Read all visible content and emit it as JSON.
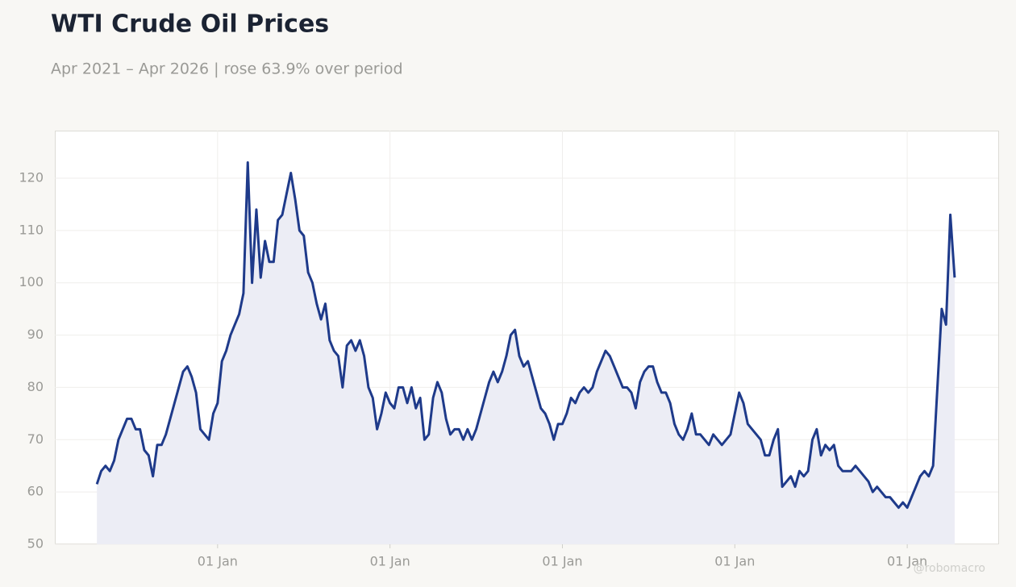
{
  "chart_data": {
    "type": "area-line",
    "title": "WTI Crude Oil Prices",
    "subtitle": "Apr 2021 – Apr 2026 | rose 63.9% over period",
    "watermark": "@robomacro",
    "color": "#1e3a8a",
    "fill_color": "#ecedf5",
    "grid": true,
    "xlim": [
      2021.056,
      2026.528
    ],
    "ylim": [
      50,
      129.1
    ],
    "xticks": [
      {
        "value": 2022,
        "label": "01 Jan"
      },
      {
        "value": 2023,
        "label": "01 Jan"
      },
      {
        "value": 2024,
        "label": "01 Jan"
      },
      {
        "value": 2025,
        "label": "01 Jan"
      },
      {
        "value": 2026,
        "label": "01 Jan"
      }
    ],
    "yticks": [
      50,
      60,
      70,
      80,
      90,
      100,
      110,
      120
    ],
    "x": [
      2021.3,
      2021.325,
      2021.35,
      2021.375,
      2021.4,
      2021.425,
      2021.45,
      2021.475,
      2021.5,
      2021.525,
      2021.55,
      2021.575,
      2021.6,
      2021.625,
      2021.65,
      2021.675,
      2021.7,
      2021.725,
      2021.75,
      2021.775,
      2021.8,
      2021.825,
      2021.85,
      2021.875,
      2021.9,
      2021.925,
      2021.95,
      2021.975,
      2022.0,
      2022.025,
      2022.05,
      2022.075,
      2022.1,
      2022.125,
      2022.15,
      2022.175,
      2022.2,
      2022.225,
      2022.25,
      2022.275,
      2022.3,
      2022.325,
      2022.35,
      2022.375,
      2022.4,
      2022.425,
      2022.45,
      2022.475,
      2022.5,
      2022.525,
      2022.55,
      2022.575,
      2022.6,
      2022.625,
      2022.65,
      2022.675,
      2022.7,
      2022.725,
      2022.75,
      2022.775,
      2022.8,
      2022.825,
      2022.85,
      2022.875,
      2022.9,
      2022.925,
      2022.95,
      2022.975,
      2023.0,
      2023.025,
      2023.05,
      2023.075,
      2023.1,
      2023.125,
      2023.15,
      2023.175,
      2023.2,
      2023.225,
      2023.25,
      2023.275,
      2023.3,
      2023.325,
      2023.35,
      2023.375,
      2023.4,
      2023.425,
      2023.45,
      2023.475,
      2023.5,
      2023.525,
      2023.55,
      2023.575,
      2023.6,
      2023.625,
      2023.65,
      2023.675,
      2023.7,
      2023.725,
      2023.75,
      2023.775,
      2023.8,
      2023.825,
      2023.85,
      2023.875,
      2023.9,
      2023.925,
      2023.95,
      2023.975,
      2024.0,
      2024.025,
      2024.05,
      2024.075,
      2024.1,
      2024.125,
      2024.15,
      2024.175,
      2024.2,
      2024.225,
      2024.25,
      2024.275,
      2024.3,
      2024.325,
      2024.35,
      2024.375,
      2024.4,
      2024.425,
      2024.45,
      2024.475,
      2024.5,
      2024.525,
      2024.55,
      2024.575,
      2024.6,
      2024.625,
      2024.65,
      2024.675,
      2024.7,
      2024.725,
      2024.75,
      2024.775,
      2024.8,
      2024.825,
      2024.85,
      2024.875,
      2024.9,
      2024.925,
      2024.95,
      2024.975,
      2025.0,
      2025.025,
      2025.05,
      2025.075,
      2025.1,
      2025.125,
      2025.15,
      2025.175,
      2025.2,
      2025.225,
      2025.25,
      2025.275,
      2025.3,
      2025.325,
      2025.35,
      2025.375,
      2025.4,
      2025.425,
      2025.45,
      2025.475,
      2025.5,
      2025.525,
      2025.55,
      2025.575,
      2025.6,
      2025.625,
      2025.65,
      2025.675,
      2025.7,
      2025.725,
      2025.75,
      2025.775,
      2025.8,
      2025.825,
      2025.85,
      2025.875,
      2025.9,
      2025.925,
      2025.95,
      2025.975,
      2026.0,
      2026.025,
      2026.05,
      2026.075,
      2026.1,
      2026.125,
      2026.15,
      2026.175,
      2026.2,
      2026.225,
      2026.25,
      2026.275
    ],
    "values": [
      61.5,
      64,
      65,
      64,
      66,
      70,
      72,
      74,
      74,
      72,
      72,
      68,
      67,
      63,
      69,
      69,
      71,
      74,
      77,
      80,
      83,
      84,
      82,
      79,
      72,
      71,
      70,
      75,
      77,
      85,
      87,
      90,
      92,
      94,
      98,
      123,
      100,
      114,
      101,
      108,
      104,
      104,
      112,
      113,
      117,
      121,
      116,
      110,
      109,
      102,
      100,
      96,
      93,
      96,
      89,
      87,
      86,
      80,
      88,
      89,
      87,
      89,
      86,
      80,
      78,
      72,
      75,
      79,
      77,
      76,
      80,
      80,
      77,
      80,
      76,
      78,
      70,
      71,
      78,
      81,
      79,
      74,
      71,
      72,
      72,
      70,
      72,
      70,
      72,
      75,
      78,
      81,
      83,
      81,
      83,
      86,
      90,
      91,
      86,
      84,
      85,
      82,
      79,
      76,
      75,
      73,
      70,
      73,
      73,
      75,
      78,
      77,
      79,
      80,
      79,
      80,
      83,
      85,
      87,
      86,
      84,
      82,
      80,
      80,
      79,
      76,
      81,
      83,
      84,
      84,
      81,
      79,
      79,
      77,
      73,
      71,
      70,
      72,
      75,
      71,
      71,
      70,
      69,
      71,
      70,
      69,
      70,
      71,
      75,
      79,
      77,
      73,
      72,
      71,
      70,
      67,
      67,
      70,
      72,
      61,
      62,
      63,
      61,
      64,
      63,
      64,
      70,
      72,
      67,
      69,
      68,
      69,
      65,
      64,
      64,
      64,
      65,
      64,
      63,
      62,
      60,
      61,
      60,
      59,
      59,
      58,
      57,
      58,
      57,
      59,
      61,
      63,
      64,
      63,
      65,
      80,
      95,
      92,
      113,
      101
    ]
  }
}
